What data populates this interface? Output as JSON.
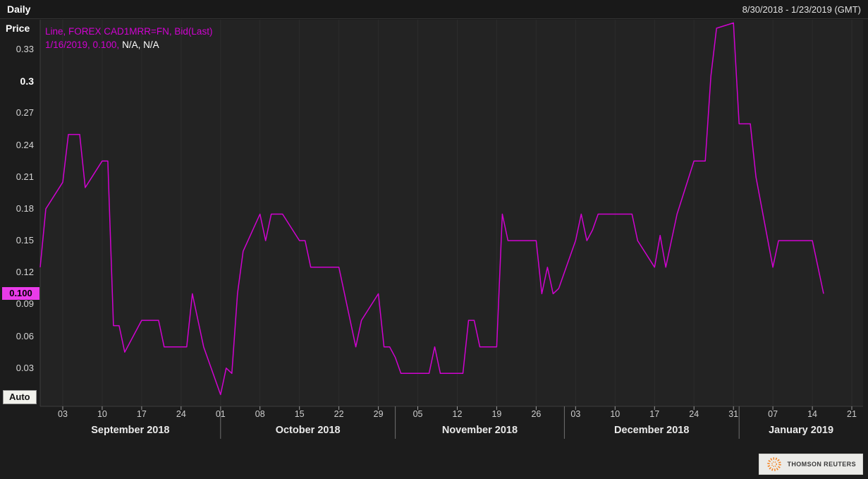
{
  "header": {
    "interval_label": "Daily",
    "date_range": "8/30/2018 - 1/23/2019 (GMT)",
    "axis_title": "Price"
  },
  "legend": {
    "line1": "Line, FOREX CAD1MRR=FN, Bid(Last)",
    "line2_value": "1/16/2019, 0.100,",
    "line2_extra": "N/A, N/A"
  },
  "last_value_label": "0.100",
  "auto_button_label": "Auto",
  "branding": {
    "name": "THOMSON REUTERS"
  },
  "colors": {
    "line": "#d102d1",
    "badge_bg": "#e93be9",
    "badge_text": "#000000",
    "background": "#1c1c1c",
    "plot_background": "#232323",
    "axis_line": "#3c3c3c",
    "tick_mark": "#9a9a9a",
    "month_separator": "#707070",
    "gridline": "rgba(255,255,255,0.045)",
    "logo_orange": "#f58220"
  },
  "chart_data": {
    "type": "line",
    "title": "FOREX CAD1MRR=FN Bid(Last), Daily",
    "xlabel": "",
    "ylabel": "Price",
    "legend_position": "top-left",
    "grid": "faint-vertical",
    "x_range": [
      "2018-08-30",
      "2019-01-23"
    ],
    "ylim": [
      -0.006,
      0.358
    ],
    "last_value": 0.1,
    "yticks": [
      {
        "value": 0.33,
        "label": "0.33",
        "bold": false
      },
      {
        "value": 0.3,
        "label": "0.3",
        "bold": true
      },
      {
        "value": 0.27,
        "label": "0.27",
        "bold": false
      },
      {
        "value": 0.24,
        "label": "0.24",
        "bold": false
      },
      {
        "value": 0.21,
        "label": "0.21",
        "bold": false
      },
      {
        "value": 0.18,
        "label": "0.18",
        "bold": false
      },
      {
        "value": 0.15,
        "label": "0.15",
        "bold": false
      },
      {
        "value": 0.12,
        "label": "0.12",
        "bold": false
      },
      {
        "value": 0.09,
        "label": "0.09",
        "bold": false
      },
      {
        "value": 0.06,
        "label": "0.06",
        "bold": false
      },
      {
        "value": 0.03,
        "label": "0.03",
        "bold": false
      }
    ],
    "xticks": [
      {
        "date": "2018-09-03",
        "label": "03"
      },
      {
        "date": "2018-09-10",
        "label": "10"
      },
      {
        "date": "2018-09-17",
        "label": "17"
      },
      {
        "date": "2018-09-24",
        "label": "24"
      },
      {
        "date": "2018-10-01",
        "label": "01"
      },
      {
        "date": "2018-10-08",
        "label": "08"
      },
      {
        "date": "2018-10-15",
        "label": "15"
      },
      {
        "date": "2018-10-22",
        "label": "22"
      },
      {
        "date": "2018-10-29",
        "label": "29"
      },
      {
        "date": "2018-11-05",
        "label": "05"
      },
      {
        "date": "2018-11-12",
        "label": "12"
      },
      {
        "date": "2018-11-19",
        "label": "19"
      },
      {
        "date": "2018-11-26",
        "label": "26"
      },
      {
        "date": "2018-12-03",
        "label": "03"
      },
      {
        "date": "2018-12-10",
        "label": "10"
      },
      {
        "date": "2018-12-17",
        "label": "17"
      },
      {
        "date": "2018-12-24",
        "label": "24"
      },
      {
        "date": "2018-12-31",
        "label": "31"
      },
      {
        "date": "2019-01-07",
        "label": "07"
      },
      {
        "date": "2019-01-14",
        "label": "14"
      },
      {
        "date": "2019-01-21",
        "label": "21"
      }
    ],
    "months": [
      {
        "label": "September 2018",
        "start": "2018-08-30",
        "end": "2018-10-01"
      },
      {
        "label": "October 2018",
        "start": "2018-10-01",
        "end": "2018-11-01"
      },
      {
        "label": "November 2018",
        "start": "2018-11-01",
        "end": "2018-12-01"
      },
      {
        "label": "December 2018",
        "start": "2018-12-01",
        "end": "2019-01-01"
      },
      {
        "label": "January 2019",
        "start": "2019-01-01",
        "end": "2019-01-23"
      }
    ],
    "month_separators": [
      "2018-10-01",
      "2018-11-01",
      "2018-12-01",
      "2019-01-01"
    ],
    "series": [
      {
        "name": "FOREX CAD1MRR=FN Bid(Last)",
        "color": "#d102d1",
        "points": [
          [
            "2018-08-30",
            0.125
          ],
          [
            "2018-08-31",
            0.18
          ],
          [
            "2018-09-03",
            0.205
          ],
          [
            "2018-09-04",
            0.25
          ],
          [
            "2018-09-05",
            0.25
          ],
          [
            "2018-09-06",
            0.25
          ],
          [
            "2018-09-07",
            0.2
          ],
          [
            "2018-09-10",
            0.225
          ],
          [
            "2018-09-11",
            0.225
          ],
          [
            "2018-09-12",
            0.07
          ],
          [
            "2018-09-13",
            0.07
          ],
          [
            "2018-09-14",
            0.045
          ],
          [
            "2018-09-17",
            0.075
          ],
          [
            "2018-09-18",
            0.075
          ],
          [
            "2018-09-19",
            0.075
          ],
          [
            "2018-09-20",
            0.075
          ],
          [
            "2018-09-21",
            0.05
          ],
          [
            "2018-09-24",
            0.05
          ],
          [
            "2018-09-25",
            0.05
          ],
          [
            "2018-09-26",
            0.1
          ],
          [
            "2018-09-27",
            0.075
          ],
          [
            "2018-09-28",
            0.05
          ],
          [
            "2018-10-01",
            0.005
          ],
          [
            "2018-10-02",
            0.03
          ],
          [
            "2018-10-03",
            0.025
          ],
          [
            "2018-10-04",
            0.1
          ],
          [
            "2018-10-05",
            0.14
          ],
          [
            "2018-10-08",
            0.175
          ],
          [
            "2018-10-09",
            0.15
          ],
          [
            "2018-10-10",
            0.175
          ],
          [
            "2018-10-11",
            0.175
          ],
          [
            "2018-10-12",
            0.175
          ],
          [
            "2018-10-15",
            0.15
          ],
          [
            "2018-10-16",
            0.15
          ],
          [
            "2018-10-17",
            0.125
          ],
          [
            "2018-10-18",
            0.125
          ],
          [
            "2018-10-19",
            0.125
          ],
          [
            "2018-10-22",
            0.125
          ],
          [
            "2018-10-23",
            0.1
          ],
          [
            "2018-10-24",
            0.075
          ],
          [
            "2018-10-25",
            0.05
          ],
          [
            "2018-10-26",
            0.075
          ],
          [
            "2018-10-29",
            0.1
          ],
          [
            "2018-10-30",
            0.05
          ],
          [
            "2018-10-31",
            0.05
          ],
          [
            "2018-11-01",
            0.04
          ],
          [
            "2018-11-02",
            0.025
          ],
          [
            "2018-11-05",
            0.025
          ],
          [
            "2018-11-06",
            0.025
          ],
          [
            "2018-11-07",
            0.025
          ],
          [
            "2018-11-08",
            0.05
          ],
          [
            "2018-11-09",
            0.025
          ],
          [
            "2018-11-12",
            0.025
          ],
          [
            "2018-11-13",
            0.025
          ],
          [
            "2018-11-14",
            0.075
          ],
          [
            "2018-11-15",
            0.075
          ],
          [
            "2018-11-16",
            0.05
          ],
          [
            "2018-11-19",
            0.05
          ],
          [
            "2018-11-20",
            0.175
          ],
          [
            "2018-11-21",
            0.15
          ],
          [
            "2018-11-22",
            0.15
          ],
          [
            "2018-11-23",
            0.15
          ],
          [
            "2018-11-26",
            0.15
          ],
          [
            "2018-11-27",
            0.1
          ],
          [
            "2018-11-28",
            0.125
          ],
          [
            "2018-11-29",
            0.1
          ],
          [
            "2018-11-30",
            0.105
          ],
          [
            "2018-12-03",
            0.15
          ],
          [
            "2018-12-04",
            0.175
          ],
          [
            "2018-12-05",
            0.15
          ],
          [
            "2018-12-06",
            0.16
          ],
          [
            "2018-12-07",
            0.175
          ],
          [
            "2018-12-10",
            0.175
          ],
          [
            "2018-12-11",
            0.175
          ],
          [
            "2018-12-12",
            0.175
          ],
          [
            "2018-12-13",
            0.175
          ],
          [
            "2018-12-14",
            0.15
          ],
          [
            "2018-12-17",
            0.125
          ],
          [
            "2018-12-18",
            0.155
          ],
          [
            "2018-12-19",
            0.125
          ],
          [
            "2018-12-20",
            0.15
          ],
          [
            "2018-12-21",
            0.175
          ],
          [
            "2018-12-24",
            0.225
          ],
          [
            "2018-12-26",
            0.225
          ],
          [
            "2018-12-27",
            0.305
          ],
          [
            "2018-12-28",
            0.35
          ],
          [
            "2018-12-31",
            0.355
          ],
          [
            "2019-01-01",
            0.26
          ],
          [
            "2019-01-02",
            0.26
          ],
          [
            "2019-01-03",
            0.26
          ],
          [
            "2019-01-04",
            0.21
          ],
          [
            "2019-01-07",
            0.125
          ],
          [
            "2019-01-08",
            0.15
          ],
          [
            "2019-01-09",
            0.15
          ],
          [
            "2019-01-10",
            0.15
          ],
          [
            "2019-01-11",
            0.15
          ],
          [
            "2019-01-14",
            0.15
          ],
          [
            "2019-01-15",
            0.125
          ],
          [
            "2019-01-16",
            0.1
          ]
        ]
      }
    ]
  }
}
